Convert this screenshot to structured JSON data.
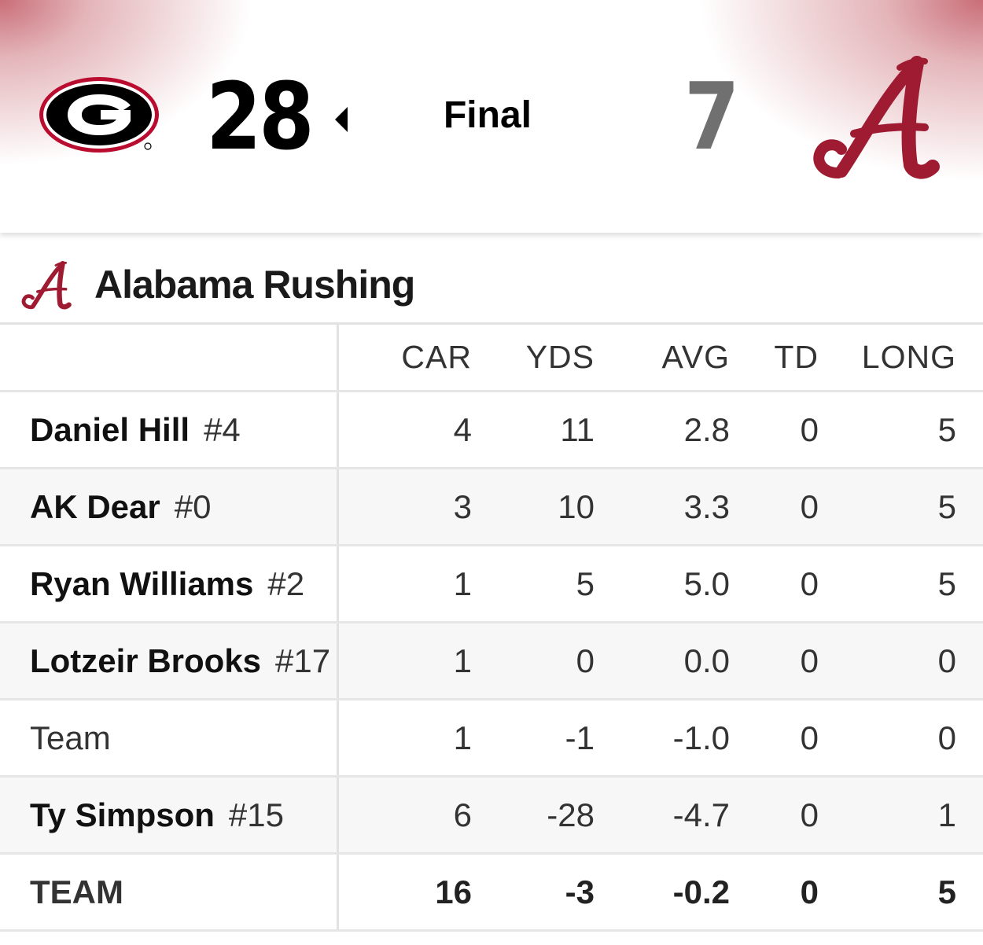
{
  "scoreboard": {
    "home_team_logo_letter": "G",
    "home_score": "28",
    "status": "Final",
    "away_score": "7",
    "away_team_logo_letter": "A",
    "colors": {
      "georgia_red": "#BA0C2F",
      "alabama_crimson": "#9E1B32",
      "winner_score": "#000000",
      "loser_score": "#707070"
    }
  },
  "section": {
    "title": "Alabama Rushing",
    "logo_letter": "A"
  },
  "table": {
    "columns": [
      "CAR",
      "YDS",
      "AVG",
      "TD",
      "LONG"
    ],
    "rows": [
      {
        "name": "Daniel Hill",
        "number": "#4",
        "car": "4",
        "yds": "11",
        "avg": "2.8",
        "td": "0",
        "long": "5"
      },
      {
        "name": "AK Dear",
        "number": "#0",
        "car": "3",
        "yds": "10",
        "avg": "3.3",
        "td": "0",
        "long": "5"
      },
      {
        "name": "Ryan Williams",
        "number": "#2",
        "car": "1",
        "yds": "5",
        "avg": "5.0",
        "td": "0",
        "long": "5"
      },
      {
        "name": "Lotzeir Brooks",
        "number": "#17",
        "car": "1",
        "yds": "0",
        "avg": "0.0",
        "td": "0",
        "long": "0"
      },
      {
        "name": "Team",
        "number": "",
        "car": "1",
        "yds": "-1",
        "avg": "-1.0",
        "td": "0",
        "long": "0"
      },
      {
        "name": "Ty Simpson",
        "number": "#15",
        "car": "6",
        "yds": "-28",
        "avg": "-4.7",
        "td": "0",
        "long": "1"
      }
    ],
    "total": {
      "name": "TEAM",
      "car": "16",
      "yds": "-3",
      "avg": "-0.2",
      "td": "0",
      "long": "5"
    }
  }
}
